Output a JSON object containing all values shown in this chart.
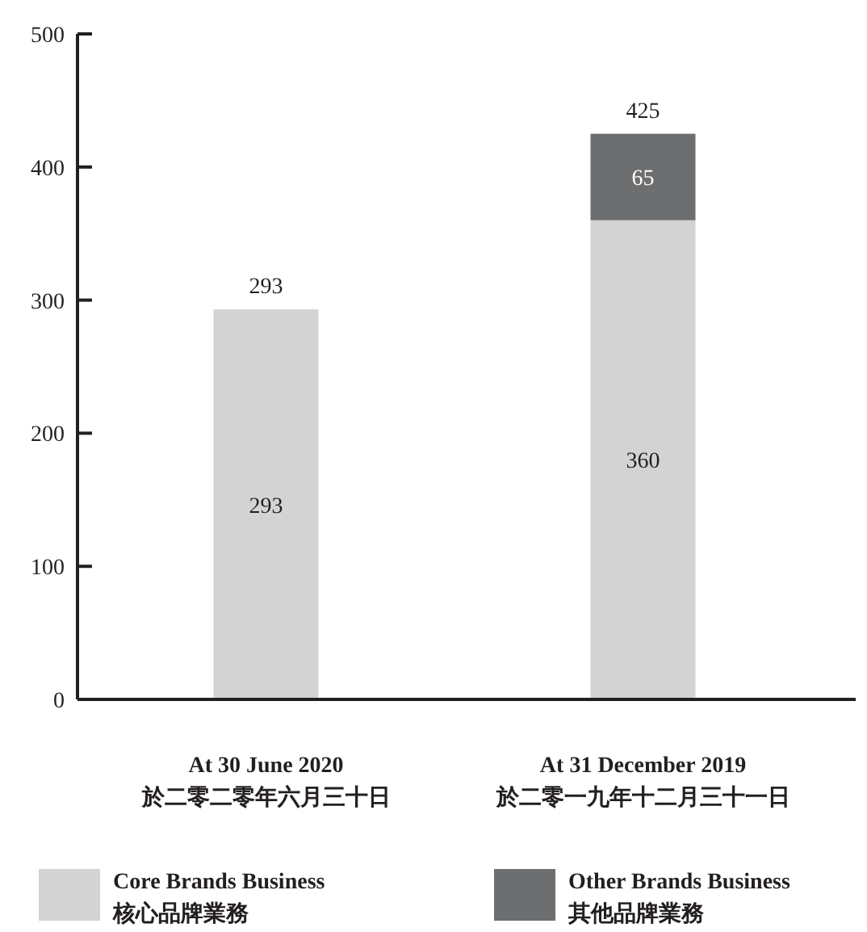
{
  "chart_data": {
    "type": "bar",
    "stacked": true,
    "categories": [
      "At 30 June 2020\n於二零二零年六月三十日",
      "At 31 December 2019\n於二零一九年十二月三十一日"
    ],
    "series": [
      {
        "name": "Core Brands Business\n核心品牌業務",
        "color": "#d3d3d3",
        "values": [
          293,
          360
        ]
      },
      {
        "name": "Other Brands Business\n其他品牌業務",
        "color": "#6d6e70",
        "values": [
          null,
          65
        ]
      }
    ],
    "data_labels": true,
    "totals": [
      "293",
      "425"
    ],
    "ylim": [
      0,
      500
    ],
    "yticks": [
      0,
      100,
      200,
      300,
      400,
      500
    ],
    "grid": false,
    "legend": "bottom"
  }
}
